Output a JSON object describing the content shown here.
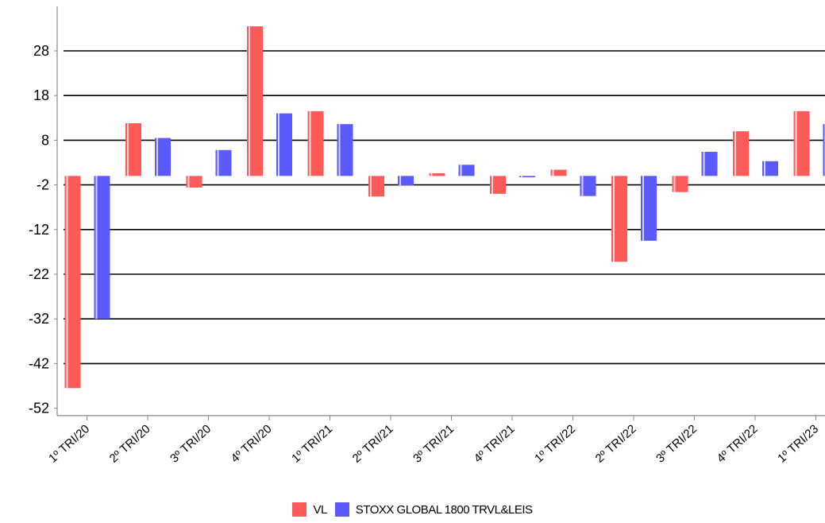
{
  "chart_data": {
    "type": "bar",
    "categories": [
      "1º TRI/20",
      "2º TRI/20",
      "3º TRI/20",
      "4º TRI/20",
      "1º TRI/21",
      "2º TRI/21",
      "3º TRI/21",
      "4º TRI/21",
      "1º TRI/22",
      "2º TRI/22",
      "3º TRI/22",
      "4º TRI/22",
      "1º TRI/23"
    ],
    "series": [
      {
        "name": "VL",
        "color": "#ff5a5a",
        "values": [
          -47.5,
          11.8,
          -2.6,
          33.5,
          14.5,
          -4.6,
          0.6,
          -4.0,
          1.4,
          -19.2,
          -3.6,
          10.0,
          14.5
        ]
      },
      {
        "name": "STOXX GLOBAL 1800 TRVL&LEIS",
        "color": "#5a5aff",
        "values": [
          -32.0,
          8.5,
          5.8,
          14.0,
          11.6,
          -2.1,
          2.5,
          -0.3,
          -4.5,
          -14.5,
          5.4,
          3.3,
          11.6
        ]
      }
    ],
    "yticks": [
      28,
      18,
      8,
      -2,
      -12,
      -22,
      -32,
      -42,
      -52
    ],
    "ylim": [
      -54,
      38
    ],
    "grid": true,
    "legend_position": "bottom"
  }
}
